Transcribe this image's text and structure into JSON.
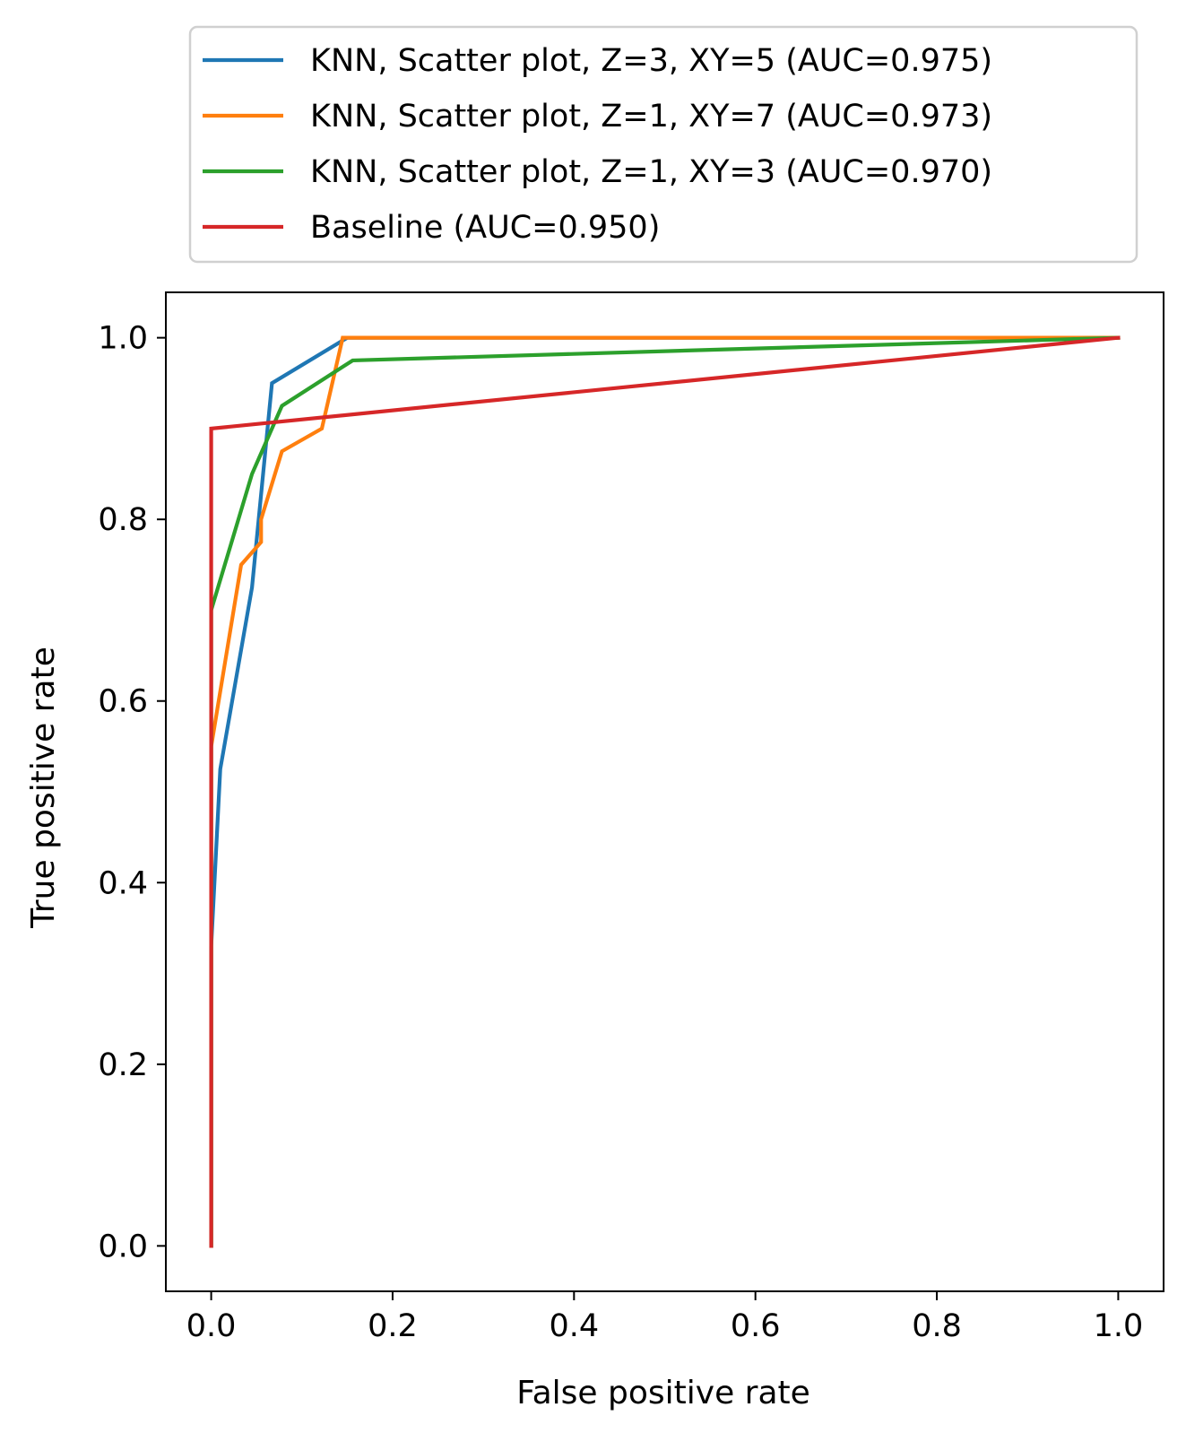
{
  "chart_data": {
    "type": "line",
    "title": "",
    "xlabel": "False positive rate",
    "ylabel": "True positive rate",
    "xlim": [
      -0.05,
      1.05
    ],
    "ylim": [
      -0.05,
      1.05
    ],
    "xticks": [
      0.0,
      0.2,
      0.4,
      0.6,
      0.8,
      1.0
    ],
    "yticks": [
      0.0,
      0.2,
      0.4,
      0.6,
      0.8,
      1.0
    ],
    "xtick_labels": [
      "0.0",
      "0.2",
      "0.4",
      "0.6",
      "0.8",
      "1.0"
    ],
    "ytick_labels": [
      "0.0",
      "0.2",
      "0.4",
      "0.6",
      "0.8",
      "1.0"
    ],
    "grid": false,
    "legend_position": "above-plot",
    "series": [
      {
        "name": "KNN, Scatter plot, Z=3, XY=5 (AUC=0.975)",
        "color": "#1f77b4",
        "x": [
          0.0,
          0.0,
          0.01,
          0.045,
          0.067,
          0.15,
          1.0
        ],
        "y": [
          0.0,
          0.33,
          0.525,
          0.725,
          0.95,
          1.0,
          1.0
        ]
      },
      {
        "name": "KNN, Scatter plot, Z=1, XY=7 (AUC=0.973)",
        "color": "#ff7f0e",
        "x": [
          0.0,
          0.0,
          0.033,
          0.055,
          0.055,
          0.078,
          0.122,
          0.145,
          1.0
        ],
        "y": [
          0.0,
          0.55,
          0.75,
          0.775,
          0.8,
          0.875,
          0.9,
          1.0,
          1.0
        ]
      },
      {
        "name": "KNN, Scatter plot, Z=1, XY=3 (AUC=0.970)",
        "color": "#2ca02c",
        "x": [
          0.0,
          0.0,
          0.045,
          0.078,
          0.156,
          1.0
        ],
        "y": [
          0.0,
          0.7,
          0.85,
          0.925,
          0.975,
          1.0
        ]
      },
      {
        "name": "Baseline (AUC=0.950)",
        "color": "#d62728",
        "x": [
          0.0,
          0.0,
          1.0
        ],
        "y": [
          0.0,
          0.9,
          1.0
        ]
      }
    ]
  }
}
